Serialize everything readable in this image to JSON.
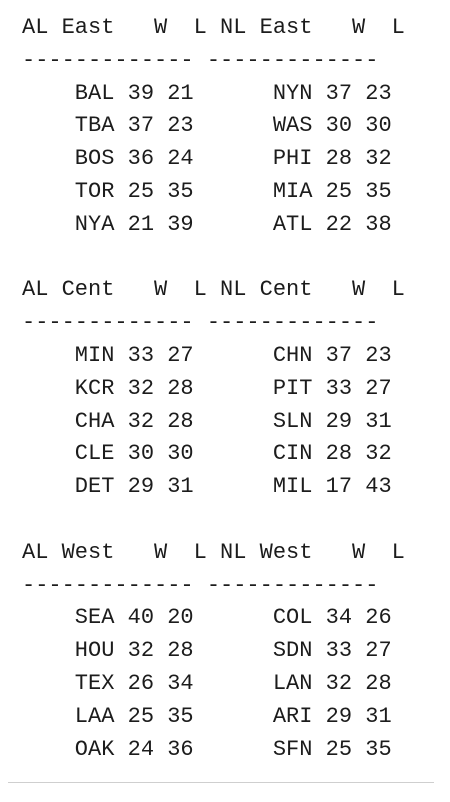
{
  "lines": [
    "AL East   W  L NL East   W  L",
    "------------- -------------",
    "    BAL 39 21      NYN 37 23",
    "    TBA 37 23      WAS 30 30",
    "    BOS 36 24      PHI 28 32",
    "    TOR 25 35      MIA 25 35",
    "    NYA 21 39      ATL 22 38",
    "",
    "AL Cent   W  L NL Cent   W  L",
    "------------- -------------",
    "    MIN 33 27      CHN 37 23",
    "    KCR 32 28      PIT 33 27",
    "    CHA 32 28      SLN 29 31",
    "    CLE 30 30      CIN 28 32",
    "    DET 29 31      MIL 17 43",
    "",
    "AL West   W  L NL West   W  L",
    "------------- -------------",
    "    SEA 40 20      COL 34 26",
    "    HOU 32 28      SDN 33 27",
    "    TEX 26 34      LAN 32 28",
    "    LAA 25 35      ARI 29 31",
    "    OAK 24 36      SFN 25 35"
  ]
}
